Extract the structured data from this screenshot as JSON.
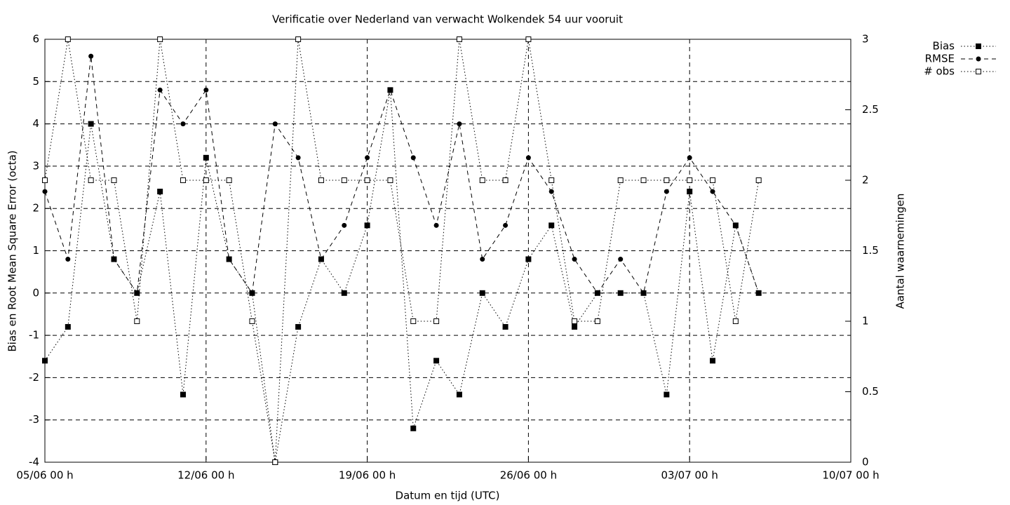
{
  "chart_data": {
    "type": "line",
    "title": "Verificatie over Nederland van verwacht Wolkendek 54 uur vooruit",
    "xlabel": "Datum en tijd (UTC)",
    "ylabel": "Bias en Root Mean Square Error (octa)",
    "y2label": "Aantal waarnemingen",
    "categories": [
      "05/06 00 h",
      null,
      null,
      null,
      null,
      null,
      null,
      "12/06 00 h",
      null,
      null,
      null,
      null,
      null,
      null,
      "19/06 00 h",
      null,
      null,
      null,
      null,
      null,
      null,
      "26/06 00 h",
      null,
      null,
      null,
      null,
      null,
      null,
      "03/07 00 h",
      null,
      null,
      null,
      null,
      null,
      null,
      "10/07 00 h"
    ],
    "series": [
      {
        "name": "Bias",
        "color": "#000000",
        "dash": "dotted",
        "marker": "filled-square",
        "values": [
          -1.6,
          -0.8,
          4,
          0.8,
          0,
          2.4,
          -2.4,
          3.2,
          0.8,
          0,
          -4,
          -0.8,
          0.8,
          0,
          1.6,
          4.8,
          -3.2,
          -1.6,
          -2.4,
          0,
          -0.8,
          0.8,
          1.6,
          -0.8,
          0,
          0,
          0,
          -2.4,
          2.4,
          -1.6,
          1.6,
          0,
          null,
          null,
          null,
          null
        ]
      },
      {
        "name": "RMSE",
        "color": "#000000",
        "dash": "dashed",
        "marker": "circle",
        "values": [
          2.4,
          0.8,
          5.6,
          0.8,
          0,
          4.8,
          4,
          4.8,
          0.8,
          0,
          4,
          3.2,
          0.8,
          1.6,
          3.2,
          4.8,
          3.2,
          1.6,
          4,
          0.8,
          1.6,
          3.2,
          2.4,
          0.8,
          0,
          0.8,
          0,
          2.4,
          3.2,
          2.4,
          1.6,
          0,
          null,
          null,
          null,
          null
        ]
      },
      {
        "name": "# obs",
        "color": "#000000",
        "dash": "dotted",
        "marker": "open-square",
        "axis": "y2",
        "values": [
          2,
          3,
          2,
          2,
          1,
          3,
          2,
          2,
          2,
          1,
          0,
          3,
          2,
          2,
          2,
          2,
          1,
          1,
          3,
          2,
          2,
          3,
          2,
          1,
          1,
          2,
          2,
          2,
          2,
          2,
          1,
          2,
          null,
          null,
          null,
          null
        ]
      }
    ],
    "ylim": [
      -4,
      6
    ],
    "yticks": [
      -4,
      -3,
      -2,
      -1,
      0,
      1,
      2,
      3,
      4,
      5,
      6
    ],
    "y2lim": [
      0,
      3
    ],
    "y2ticks": [
      0,
      0.5,
      1,
      1.5,
      2,
      2.5,
      3
    ],
    "grid": true,
    "legend": "top-right"
  }
}
